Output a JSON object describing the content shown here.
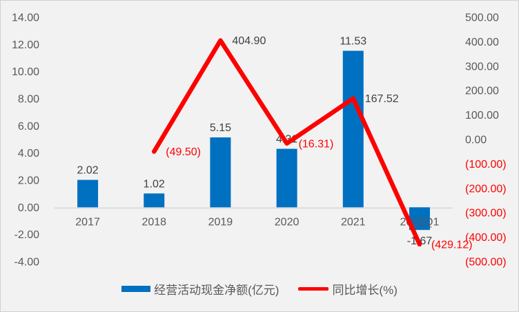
{
  "chart_data": {
    "type": "combo_bar_line",
    "title": "",
    "categories": [
      "2017",
      "2018",
      "2019",
      "2020",
      "2021",
      "2022Q1"
    ],
    "series": [
      {
        "name": "经营活动现金净额(亿元)",
        "type": "bar",
        "axis": "left",
        "color": "#0070C0",
        "values": [
          2.02,
          1.02,
          5.15,
          4.31,
          11.53,
          -1.67
        ],
        "labels": [
          "2.02",
          "1.02",
          "5.15",
          "4.31",
          "11.53",
          "-1.67"
        ]
      },
      {
        "name": "同比增长(%)",
        "type": "line",
        "axis": "right",
        "color": "#FF0000",
        "values": [
          null,
          -49.5,
          404.9,
          -16.31,
          167.52,
          -429.12
        ],
        "labels": [
          null,
          "(49.50)",
          "404.90",
          "(16.31)",
          "167.52",
          "(429.12)"
        ]
      }
    ],
    "left_axis": {
      "max": 14,
      "min": -4,
      "step": 2,
      "tick_labels": [
        "14.00",
        "12.00",
        "10.00",
        "8.00",
        "6.00",
        "4.00",
        "2.00",
        "0.00",
        "-2.00",
        "-4.00"
      ]
    },
    "right_axis": {
      "max": 500,
      "min": -500,
      "step": 100,
      "tick_labels": [
        "500.00",
        "400.00",
        "300.00",
        "200.00",
        "100.00",
        "0.00",
        "(100.00)",
        "(200.00)",
        "(300.00)",
        "(400.00)",
        "(500.00)"
      ]
    },
    "legend": {
      "position": "bottom"
    },
    "layout_hints": {
      "gridlines": false,
      "line_starts_at": "2018"
    },
    "colors": {
      "background": "#F2F2F2",
      "border": "#D0D0D0",
      "axis_text": "#595959",
      "value_label_text": "#404040",
      "negative_tick_text": "#FF0000",
      "axis_line": "#DCDCDC",
      "bar": "#0070C0",
      "line": "#FF0000"
    }
  }
}
